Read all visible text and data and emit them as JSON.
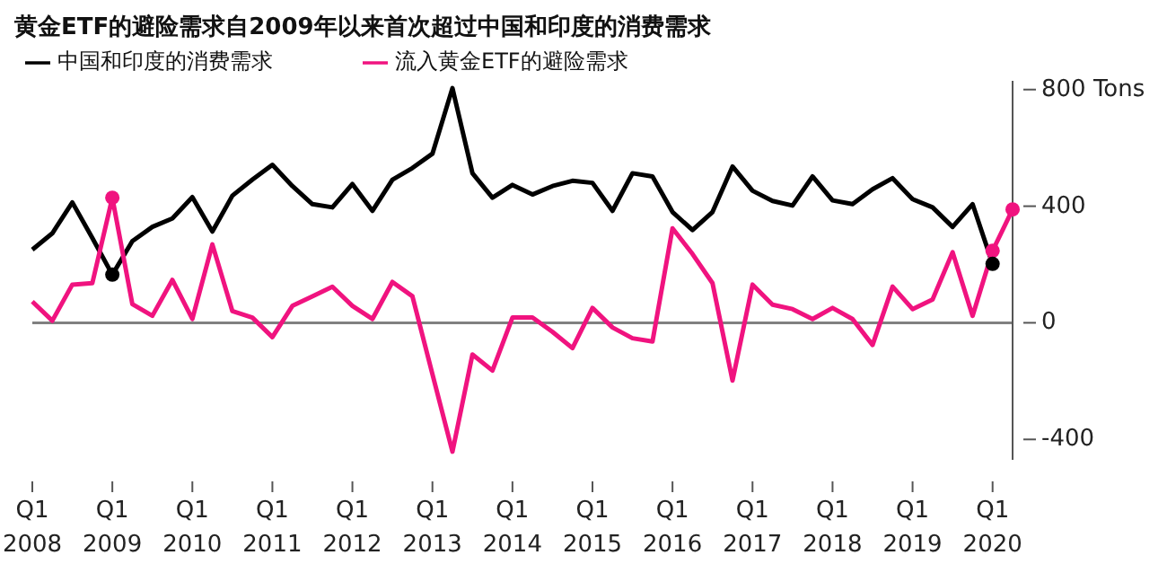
{
  "chart_data": {
    "type": "line",
    "title": "黄金ETF的避险需求自2009年以来首次超过中国和印度的消费需求",
    "categories": [
      "Q1 2008",
      null,
      null,
      null,
      "Q1 2009",
      null,
      null,
      null,
      "Q1 2010",
      null,
      null,
      null,
      "Q1 2011",
      null,
      null,
      null,
      "Q1 2012",
      null,
      null,
      null,
      "Q1 2013",
      null,
      null,
      null,
      "Q1 2014",
      null,
      null,
      null,
      "Q1 2015",
      null,
      null,
      null,
      "Q1 2016",
      null,
      null,
      null,
      "Q1 2017",
      null,
      null,
      null,
      "Q1 2018",
      null,
      null,
      null,
      "Q1 2019",
      null,
      null,
      null,
      "Q1 2020",
      null
    ],
    "series": [
      {
        "name": "中国和印度的消费需求",
        "color": "#000000",
        "values": [
          251,
          307,
          413,
          291,
          165,
          280,
          329,
          358,
          431,
          313,
          436,
          491,
          542,
          469,
          407,
          396,
          476,
          384,
          491,
          531,
          580,
          805,
          513,
          429,
          473,
          440,
          469,
          487,
          480,
          384,
          513,
          502,
          380,
          318,
          380,
          536,
          453,
          418,
          402,
          502,
          420,
          407,
          458,
          496,
          424,
          396,
          329,
          407,
          202,
          null
        ]
      },
      {
        "name": "流入黄金ETF的避险需求",
        "color": "#f0137f",
        "values": [
          73,
          7,
          131,
          136,
          429,
          64,
          24,
          147,
          13,
          269,
          40,
          18,
          -49,
          58,
          91,
          124,
          58,
          13,
          140,
          91,
          -176,
          -442,
          -109,
          -164,
          18,
          18,
          -31,
          -87,
          51,
          -16,
          -53,
          -64,
          324,
          236,
          136,
          -198,
          131,
          62,
          47,
          13,
          51,
          13,
          -76,
          124,
          47,
          80,
          242,
          24,
          247,
          389
        ]
      },
      {
        "type": "scatter",
        "marker": "circle",
        "color": "#f0137f",
        "values": [
          null,
          null,
          null,
          null,
          429,
          null,
          null,
          null,
          null,
          null,
          null,
          null,
          null,
          null,
          null,
          null,
          null,
          null,
          null,
          null,
          null,
          null,
          null,
          null,
          null,
          null,
          null,
          null,
          null,
          null,
          null,
          null,
          null,
          null,
          null,
          null,
          null,
          null,
          null,
          null,
          null,
          null,
          null,
          null,
          null,
          null,
          null,
          null,
          247,
          389
        ]
      },
      {
        "type": "scatter",
        "marker": "circle",
        "color": "#000000",
        "values": [
          null,
          null,
          null,
          null,
          165,
          null,
          null,
          null,
          null,
          null,
          null,
          null,
          null,
          null,
          null,
          null,
          null,
          null,
          null,
          null,
          null,
          null,
          null,
          null,
          null,
          null,
          null,
          null,
          null,
          null,
          null,
          null,
          null,
          null,
          null,
          null,
          null,
          null,
          null,
          null,
          null,
          null,
          null,
          null,
          null,
          null,
          null,
          null,
          202,
          null
        ]
      }
    ],
    "ylim": [
      -470,
      830
    ],
    "yticks": [
      -400,
      0,
      400,
      {
        "value": 800,
        "label": "800 Tons"
      }
    ],
    "ref_lines": [
      {
        "axis": "y",
        "value": 0,
        "color": "#808080"
      }
    ],
    "grid": false,
    "legend": "top left",
    "marker": "none",
    "line_style": "solid"
  }
}
